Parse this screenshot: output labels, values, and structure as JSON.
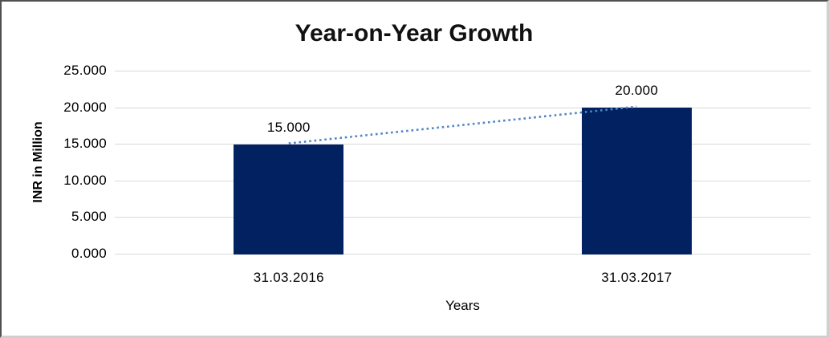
{
  "chart_data": {
    "type": "bar",
    "title": "Year-on-Year Growth",
    "xlabel": "Years",
    "ylabel": "INR in Million",
    "categories": [
      "31.03.2016",
      "31.03.2017"
    ],
    "values": [
      15,
      20
    ],
    "bar_labels": [
      "15.000",
      "20.000"
    ],
    "y_ticks": [
      0,
      5,
      10,
      15,
      20,
      25
    ],
    "y_tick_labels": [
      "0.000",
      "5.000",
      "10.000",
      "15.000",
      "20.000",
      "25.000"
    ],
    "ylim": [
      0,
      25
    ],
    "grid": true,
    "legend": false,
    "trendline": {
      "type": "linear",
      "style": "dotted",
      "connects": [
        "31.03.2016",
        "31.03.2017"
      ]
    },
    "colors": {
      "bar": "#022161",
      "trendline": "#4e86c6",
      "gridline": "#d9d9d9",
      "text": "#000000"
    }
  }
}
